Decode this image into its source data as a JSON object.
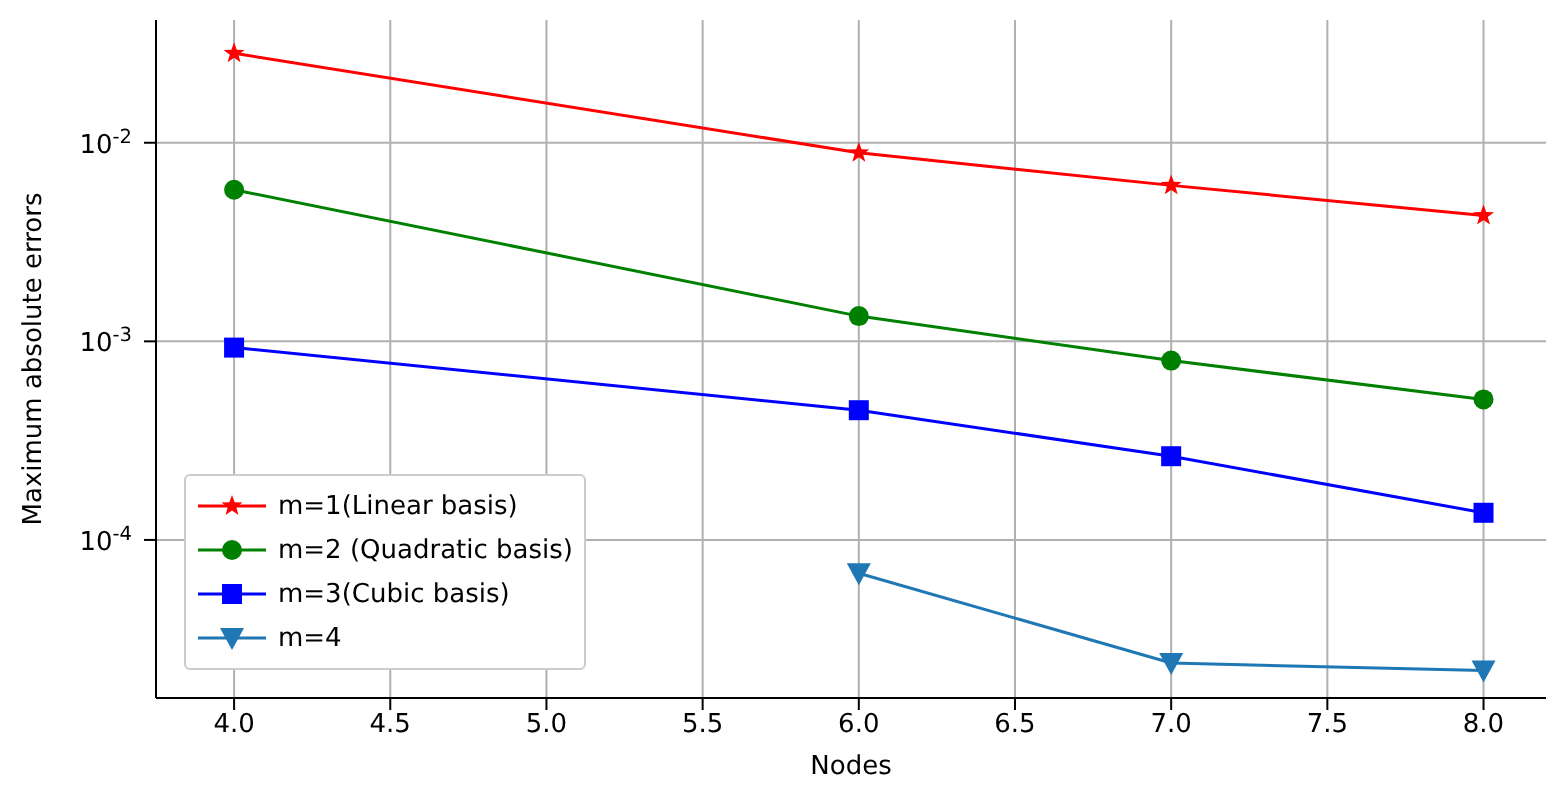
{
  "chart_data": {
    "type": "line",
    "xlabel": "Nodes",
    "ylabel": "Maximum absolute errors",
    "log": "y",
    "grid": true,
    "legend": "bottom left",
    "xlim": [
      3.75,
      8.2
    ],
    "xticks": [
      {
        "value": 4,
        "label": "4.0"
      },
      {
        "value": 4.5,
        "label": "4.5"
      },
      {
        "value": 5,
        "label": "5.0"
      },
      {
        "value": 5.5,
        "label": "5.5"
      },
      {
        "value": 6,
        "label": "6.0"
      },
      {
        "value": 6.5,
        "label": "6.5"
      },
      {
        "value": 7,
        "label": "7.0"
      },
      {
        "value": 7.5,
        "label": "7.5"
      },
      {
        "value": 8,
        "label": "8.0"
      }
    ],
    "ylim": [
      1.6e-05,
      0.0415
    ],
    "yticks": [
      {
        "value": 0.0001,
        "label": "10$^{-4}$"
      },
      {
        "value": 0.001,
        "label": "10$^{-3}$"
      },
      {
        "value": 0.01,
        "label": "10$^{-2}$"
      }
    ],
    "series": [
      {
        "name": "m=1(Linear basis)",
        "color": "#ff0000",
        "marker": "star",
        "x": [
          4,
          6,
          7,
          8
        ],
        "values": [
          0.0282,
          0.0089,
          0.0061,
          0.0043
        ]
      },
      {
        "name": "m=2 (Quadratic basis)",
        "color": "#008000",
        "marker": "circle",
        "x": [
          4,
          6,
          7,
          8
        ],
        "values": [
          0.0058,
          0.00134,
          0.0008,
          0.00051
        ]
      },
      {
        "name": "m=3(Cubic basis)",
        "color": "#0000ff",
        "marker": "square",
        "x": [
          4,
          6,
          7,
          8
        ],
        "values": [
          0.00093,
          0.00045,
          0.000264,
          0.000137
        ]
      },
      {
        "name": "m=4",
        "color": "#1f77b4",
        "marker": "triangle",
        "x": [
          6,
          7,
          8
        ],
        "values": [
          6.8e-05,
          2.4e-05,
          2.2e-05
        ]
      }
    ]
  }
}
